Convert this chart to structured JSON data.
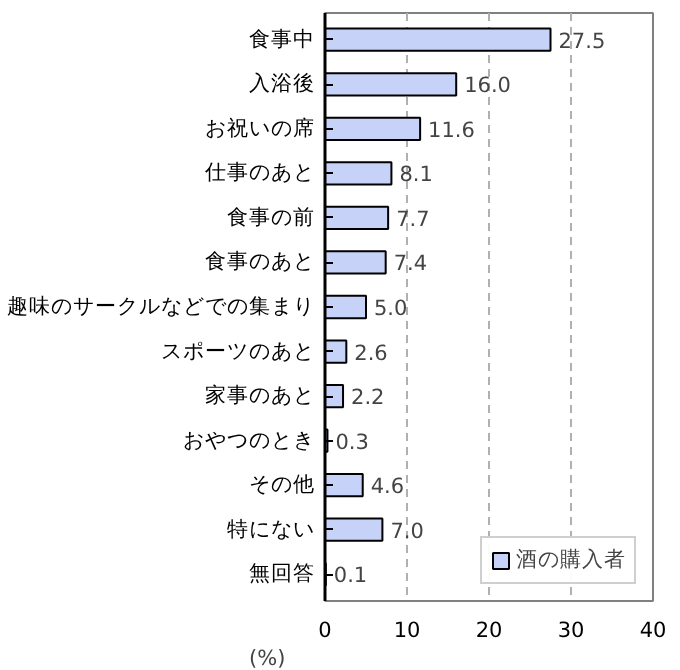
{
  "chart_data": {
    "type": "bar",
    "orientation": "horizontal",
    "categories": [
      "食事中",
      "入浴後",
      "お祝いの席",
      "仕事のあと",
      "食事の前",
      "食事のあと",
      "趣味のサークルなどでの集まり",
      "スポーツのあと",
      "家事のあと",
      "おやつのとき",
      "その他",
      "特にない",
      "無回答"
    ],
    "series": [
      {
        "name": "酒の購入者",
        "color": "#c6d2f7",
        "values": [
          27.5,
          16.0,
          11.6,
          8.1,
          7.7,
          7.4,
          5.0,
          2.6,
          2.2,
          0.3,
          4.6,
          7.0,
          0.1
        ],
        "value_labels": [
          "27.5",
          "16.0",
          "11.6",
          "8.1",
          "7.7",
          "7.4",
          "5.0",
          "2.6",
          "2.2",
          "0.3",
          "4.6",
          "7.0",
          "0.1"
        ]
      }
    ],
    "xlabel": "(%)",
    "xlim": [
      0,
      40
    ],
    "xticks": [
      0,
      10,
      20,
      30,
      40
    ],
    "grid": "x",
    "legend": "bottom right"
  }
}
